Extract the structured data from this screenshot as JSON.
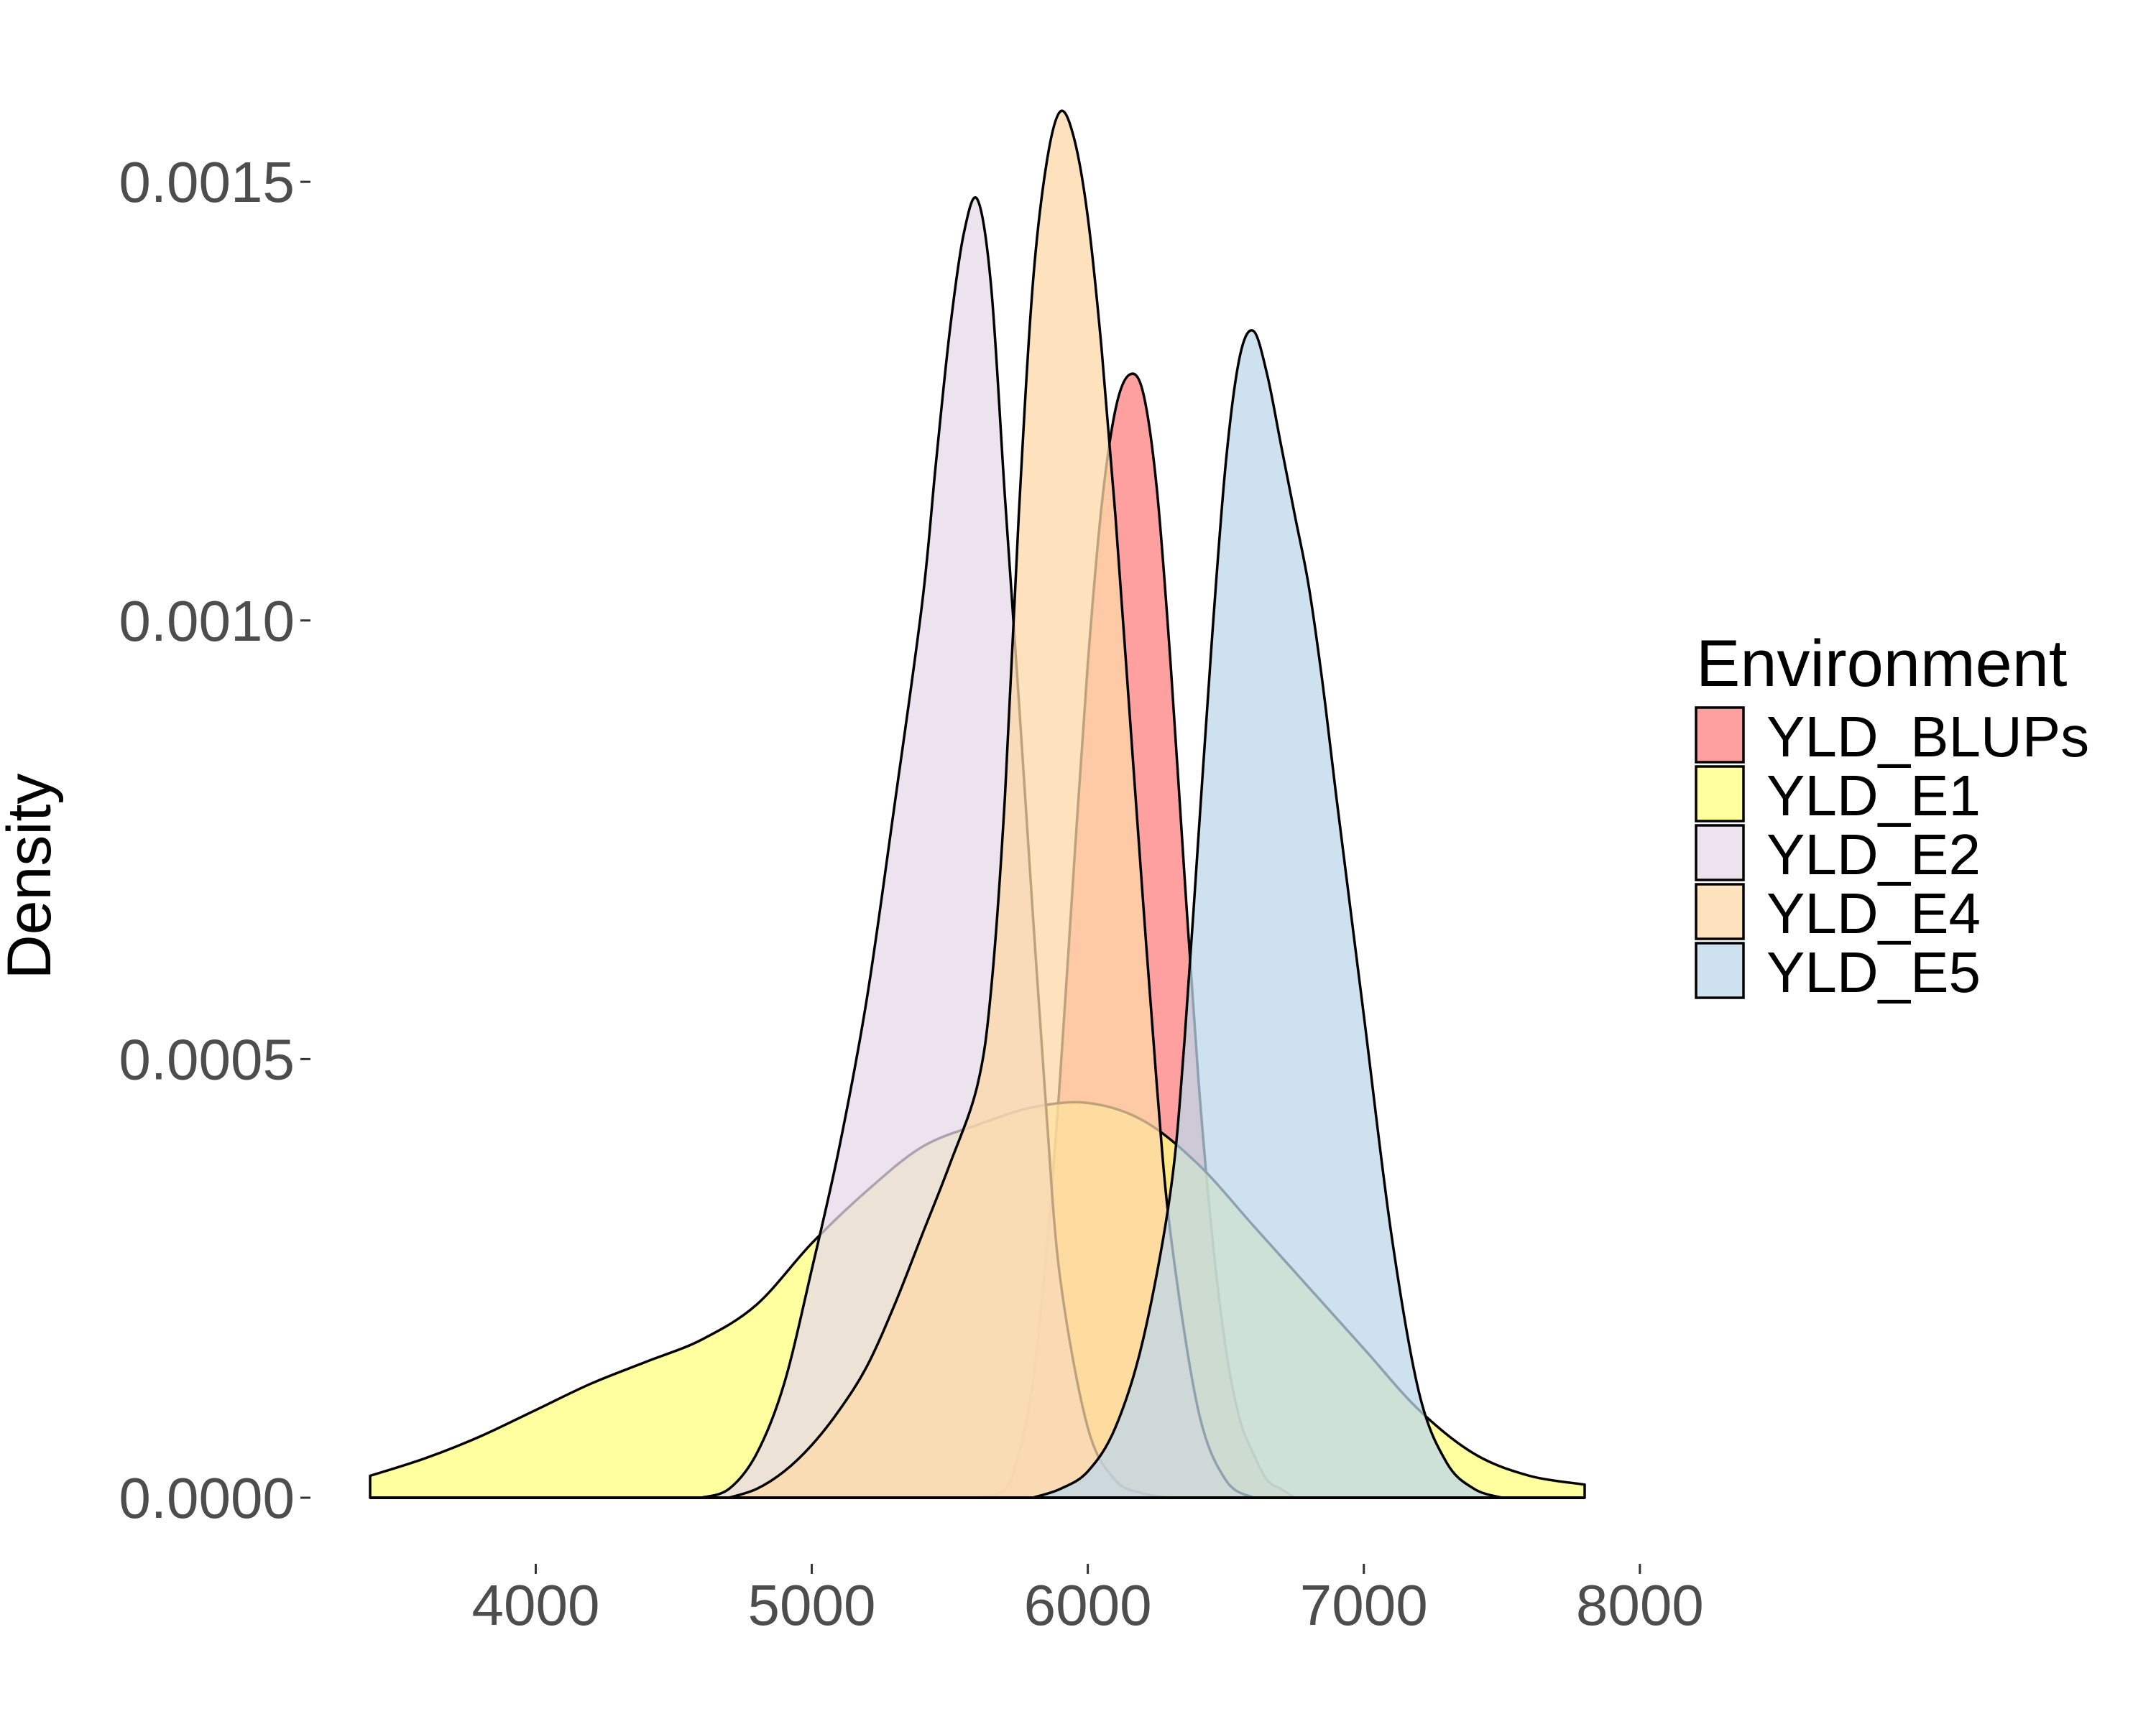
{
  "chart_data": {
    "type": "area",
    "title": "",
    "xlabel": "",
    "ylabel": "Density",
    "xlim": [
      3400,
      7800
    ],
    "ylim": [
      0,
      0.0016
    ],
    "x_ticks": [
      4000,
      5000,
      6000,
      7000,
      8000
    ],
    "x_tick_labels": [
      "4000",
      "5000",
      "6000",
      "7000",
      "8000"
    ],
    "y_ticks": [
      0,
      0.0005,
      0.001,
      0.0015
    ],
    "y_tick_labels": [
      "0.0000",
      "0.0005",
      "0.0010",
      "0.0015"
    ],
    "grid": false,
    "legend": {
      "title": "Environment",
      "position": "right"
    },
    "series": [
      {
        "name": "YLD_BLUPs",
        "color": "#FF8080",
        "x": [
          5600,
          5700,
          5750,
          5800,
          5850,
          5900,
          5950,
          6000,
          6050,
          6100,
          6150,
          6200,
          6250,
          6300,
          6350,
          6400,
          6450,
          6500,
          6550,
          6600,
          6650,
          6700,
          6750
        ],
        "y": [
          0,
          1e-05,
          5e-05,
          0.00013,
          0.00028,
          0.00048,
          0.00072,
          0.00095,
          0.00113,
          0.00124,
          0.00128,
          0.00126,
          0.00115,
          0.00095,
          0.00071,
          0.00048,
          0.0003,
          0.00017,
          9e-05,
          5e-05,
          2e-05,
          1e-05,
          0
        ]
      },
      {
        "name": "YLD_E1",
        "color": "#FFFF80",
        "x": [
          3400,
          3600,
          3800,
          4000,
          4200,
          4400,
          4600,
          4800,
          5000,
          5200,
          5400,
          5600,
          5800,
          6000,
          6200,
          6400,
          6600,
          6800,
          7000,
          7200,
          7400,
          7600,
          7800
        ],
        "y": [
          2.5e-05,
          4.5e-05,
          7e-05,
          0.0001,
          0.00013,
          0.000155,
          0.00018,
          0.00022,
          0.00029,
          0.00035,
          0.0004,
          0.000425,
          0.000445,
          0.00045,
          0.00043,
          0.00038,
          0.00031,
          0.00024,
          0.00017,
          0.0001,
          5e-05,
          2.5e-05,
          1.5e-05
        ]
      },
      {
        "name": "YLD_E2",
        "color": "#E6DAE8",
        "x": [
          4600,
          4700,
          4800,
          4900,
          5000,
          5100,
          5200,
          5300,
          5400,
          5450,
          5500,
          5550,
          5600,
          5650,
          5700,
          5750,
          5800,
          5850,
          5900,
          6000,
          6100,
          6200,
          6300
        ],
        "y": [
          0,
          1e-05,
          5e-05,
          0.00013,
          0.00026,
          0.0004,
          0.00057,
          0.00079,
          0.00102,
          0.00118,
          0.00133,
          0.00144,
          0.00148,
          0.00138,
          0.00114,
          0.00091,
          0.00067,
          0.00044,
          0.00025,
          8e-05,
          2e-05,
          5e-06,
          0
        ]
      },
      {
        "name": "YLD_E4",
        "color": "#FDD8A8",
        "x": [
          4700,
          4800,
          4900,
          5000,
          5100,
          5200,
          5300,
          5400,
          5500,
          5600,
          5650,
          5700,
          5750,
          5800,
          5850,
          5900,
          5950,
          6000,
          6050,
          6100,
          6150,
          6200,
          6250,
          6300,
          6400,
          6500,
          6600
        ],
        "y": [
          0,
          1e-05,
          3e-05,
          6e-05,
          0.0001,
          0.00015,
          0.00022,
          0.0003,
          0.00038,
          0.00047,
          0.00058,
          0.0008,
          0.00112,
          0.00138,
          0.00152,
          0.00158,
          0.00155,
          0.00146,
          0.00131,
          0.00112,
          0.0009,
          0.00068,
          0.00047,
          0.0003,
          0.0001,
          2e-05,
          0
        ]
      },
      {
        "name": "YLD_E5",
        "color": "#BDD7E9",
        "x": [
          5800,
          5900,
          6000,
          6100,
          6200,
          6300,
          6350,
          6400,
          6450,
          6500,
          6550,
          6600,
          6650,
          6700,
          6750,
          6800,
          6850,
          6900,
          7000,
          7100,
          7200,
          7300,
          7400,
          7500
        ],
        "y": [
          0,
          1e-05,
          3e-05,
          8e-05,
          0.00018,
          0.00035,
          0.00052,
          0.00075,
          0.00098,
          0.00118,
          0.0013,
          0.00133,
          0.00128,
          0.0012,
          0.00112,
          0.00104,
          0.00093,
          0.0008,
          0.00055,
          0.0003,
          0.00012,
          4e-05,
          1e-05,
          0
        ]
      }
    ]
  }
}
